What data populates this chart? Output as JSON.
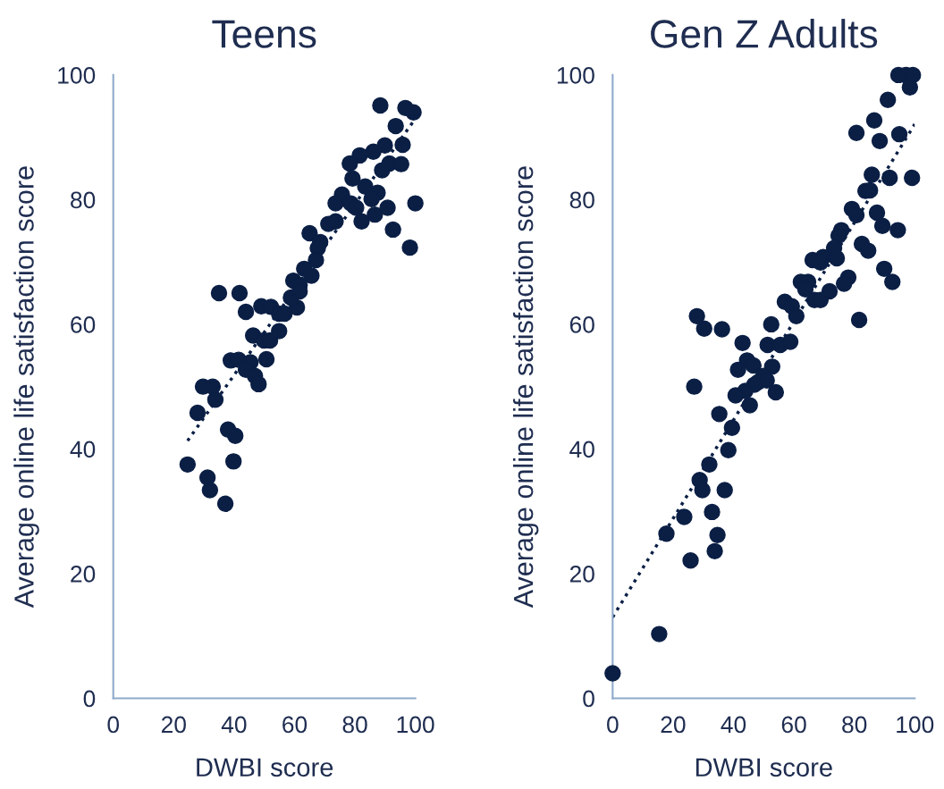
{
  "chart_data": [
    {
      "type": "scatter",
      "title": "Teens",
      "xlabel": "DWBI score",
      "ylabel": "Average online life satisfaction score",
      "xlim": [
        0,
        100
      ],
      "ylim": [
        0,
        100
      ],
      "xticks": [
        0,
        20,
        40,
        60,
        80,
        100
      ],
      "yticks": [
        0,
        20,
        40,
        60,
        80,
        100
      ],
      "grid": false,
      "legend": false,
      "series": [
        {
          "color": "#0b1f45",
          "marker": "circle",
          "x": [
            88.4,
            96.7,
            99.4,
            93.5,
            89.9,
            95.8,
            86.1,
            81.6,
            78.3,
            91.4,
            95.3,
            89.0,
            79.2,
            83.4,
            87.5,
            85.5,
            75.7,
            73.6,
            78.6,
            80.4,
            90.8,
            100,
            86.6,
            82.2,
            92.6,
            98.2,
            71.2,
            73.6,
            65.0,
            68.5,
            67.7,
            67.1,
            63.2,
            65.6,
            59.6,
            61.7,
            35.0,
            41.8,
            43.9,
            49.0,
            52.2,
            54.9,
            56.7,
            60.8,
            58.8,
            61.7,
            46.3,
            49.9,
            51.9,
            54.9,
            38.9,
            41.5,
            45.4,
            43.9,
            46.9,
            48.1,
            50.7,
            29.7,
            32.9,
            33.8,
            27.9,
            38.0,
            40.4,
            24.6,
            39.8,
            31.2,
            32.0,
            37.1
          ],
          "values": [
            95.1,
            94.7,
            94.0,
            91.8,
            88.7,
            88.8,
            87.7,
            87.1,
            85.8,
            85.8,
            85.7,
            84.7,
            83.4,
            82.1,
            81.1,
            80.1,
            80.8,
            79.4,
            79.4,
            78.7,
            78.7,
            79.4,
            77.6,
            76.5,
            75.2,
            72.3,
            76.1,
            76.5,
            74.6,
            73.2,
            72.2,
            70.3,
            68.9,
            67.8,
            67.0,
            66.3,
            65.0,
            65.0,
            62.0,
            62.9,
            62.8,
            61.7,
            61.7,
            62.7,
            64.3,
            65.3,
            58.2,
            57.4,
            57.4,
            58.9,
            54.2,
            54.3,
            53.9,
            52.7,
            51.7,
            50.4,
            54.4,
            50.0,
            50.0,
            47.9,
            45.8,
            43.1,
            42.1,
            37.5,
            38.0,
            35.4,
            33.4,
            31.2
          ]
        },
        {
          "type": "line",
          "color": "#0b1f45",
          "line_style": "dotted",
          "marker": "none",
          "x": [
            24.6,
            100
          ],
          "values": [
            41.3,
            93.0
          ]
        }
      ]
    },
    {
      "type": "scatter",
      "title": "Gen Z Adults",
      "xlabel": "DWBI score",
      "ylabel": "Average online life satisfaction score",
      "xlim": [
        0,
        100
      ],
      "ylim": [
        0,
        100
      ],
      "xticks": [
        0,
        20,
        40,
        60,
        80,
        100
      ],
      "yticks": [
        0,
        20,
        40,
        60,
        80,
        100
      ],
      "grid": false,
      "legend": false,
      "series": [
        {
          "color": "#0b1f45",
          "marker": "circle",
          "x": [
            94.6,
            97.0,
            99.4,
            98.4,
            91.1,
            86.6,
            80.7,
            88.4,
            94.9,
            85.8,
            91.7,
            99.1,
            83.7,
            85.2,
            79.2,
            80.7,
            87.5,
            89.3,
            94.4,
            75.7,
            74.8,
            82.5,
            84.6,
            73.3,
            89.9,
            92.6,
            66.2,
            69.7,
            74.2,
            68.8,
            78.0,
            76.6,
            71.8,
            62.3,
            64.7,
            63.8,
            66.8,
            68.8,
            57.0,
            59.3,
            60.8,
            81.6,
            27.9,
            30.3,
            36.2,
            43.0,
            52.5,
            51.3,
            55.5,
            58.8,
            44.5,
            46.6,
            41.5,
            52.8,
            27.0,
            49.9,
            48.1,
            51.0,
            46.9,
            43.9,
            40.7,
            54.0,
            45.4,
            35.3,
            39.5,
            38.3,
            32.0,
            28.8,
            29.7,
            37.1,
            23.7,
            32.9,
            17.8,
            34.7,
            33.8,
            25.8,
            15.4,
            0
          ],
          "values": [
            100,
            100,
            100,
            98,
            96,
            92.7,
            90.7,
            89.4,
            90.5,
            84,
            83.5,
            83.5,
            81.4,
            81.5,
            78.5,
            77.5,
            77.9,
            75.8,
            75.1,
            75.1,
            74.2,
            72.9,
            71.8,
            72.2,
            68.9,
            66.8,
            70.3,
            70.8,
            70.6,
            69.9,
            67.5,
            66.5,
            65.3,
            66.8,
            66.8,
            65.6,
            63.9,
            63.9,
            63.6,
            62.9,
            61.3,
            60.7,
            61.3,
            59.3,
            59.2,
            57.0,
            60.0,
            56.7,
            56.7,
            57.2,
            54.2,
            53.4,
            52.7,
            53.2,
            50.0,
            51.7,
            50.7,
            51.0,
            50.3,
            49.3,
            48.6,
            49.1,
            47.0,
            45.6,
            43.4,
            39.8,
            37.5,
            35.0,
            33.4,
            33.4,
            29.1,
            29.9,
            26.4,
            26.2,
            23.6,
            22.1,
            10.3,
            4.0
          ]
        },
        {
          "type": "line",
          "color": "#0b1f45",
          "line_style": "dotted",
          "marker": "none",
          "x": [
            0,
            100
          ],
          "values": [
            13.0,
            92.1
          ]
        }
      ]
    }
  ]
}
